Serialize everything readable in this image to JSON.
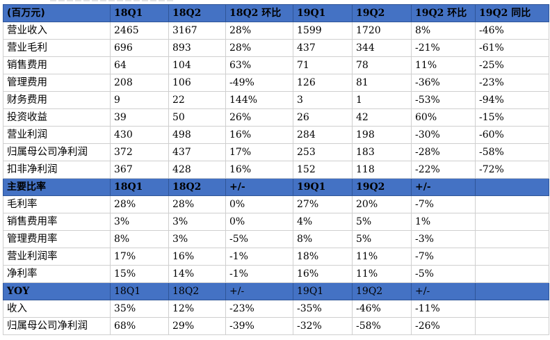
{
  "section1": {
    "headers": [
      "(百万元)",
      "18Q1",
      "18Q2",
      "18Q2 环比",
      "19Q1",
      "19Q2",
      "19Q2 环比",
      "19Q2 同比"
    ],
    "rows": [
      [
        "营业收入",
        "2465",
        "3167",
        "28%",
        "1599",
        "1720",
        "8%",
        "-46%"
      ],
      [
        "营业毛利",
        "696",
        "893",
        "28%",
        "437",
        "344",
        "-21%",
        "-61%"
      ],
      [
        "销售费用",
        "64",
        "104",
        "63%",
        "71",
        "78",
        "11%",
        "-25%"
      ],
      [
        "管理费用",
        "208",
        "106",
        "-49%",
        "126",
        "81",
        "-36%",
        "-23%"
      ],
      [
        "财务费用",
        "9",
        "22",
        "144%",
        "3",
        "1",
        "-53%",
        "-94%"
      ],
      [
        "投资收益",
        "39",
        "50",
        "26%",
        "26",
        "42",
        "60%",
        "-15%"
      ],
      [
        "营业利润",
        "430",
        "498",
        "16%",
        "284",
        "198",
        "-30%",
        "-60%"
      ],
      [
        "归属母公司净利润",
        "372",
        "437",
        "17%",
        "253",
        "183",
        "-28%",
        "-58%"
      ],
      [
        "扣非净利润",
        "367",
        "428",
        "16%",
        "152",
        "118",
        "-22%",
        "-72%"
      ]
    ]
  },
  "section2": {
    "headers": [
      "主要比率",
      "18Q1",
      "18Q2",
      "+/-",
      "19Q1",
      "19Q2",
      "+/-",
      ""
    ],
    "rows": [
      [
        "毛利率",
        "28%",
        "28%",
        "0%",
        "27%",
        "20%",
        "-7%",
        ""
      ],
      [
        "销售费用率",
        "3%",
        "3%",
        "0%",
        "4%",
        "5%",
        "1%",
        ""
      ],
      [
        "管理费用率",
        "8%",
        "3%",
        "-5%",
        "8%",
        "5%",
        "-3%",
        ""
      ],
      [
        "营业利润率",
        "17%",
        "16%",
        "-1%",
        "18%",
        "11%",
        "-7%",
        ""
      ],
      [
        "净利率",
        "15%",
        "14%",
        "-1%",
        "16%",
        "11%",
        "-5%",
        ""
      ]
    ]
  },
  "section3": {
    "headers": [
      "YOY",
      "18Q1",
      "18Q2",
      "+/-",
      "19Q1",
      "19Q2",
      "+/-",
      ""
    ],
    "rows": [
      [
        "收入",
        "35%",
        "12%",
        "-23%",
        "-35%",
        "-46%",
        "-11%",
        ""
      ],
      [
        "归属母公司净利润",
        "68%",
        "29%",
        "-39%",
        "-32%",
        "-58%",
        "-26%",
        ""
      ]
    ]
  },
  "colors": {
    "header_bg": "#4472c4",
    "border": "#cfcfcf"
  }
}
